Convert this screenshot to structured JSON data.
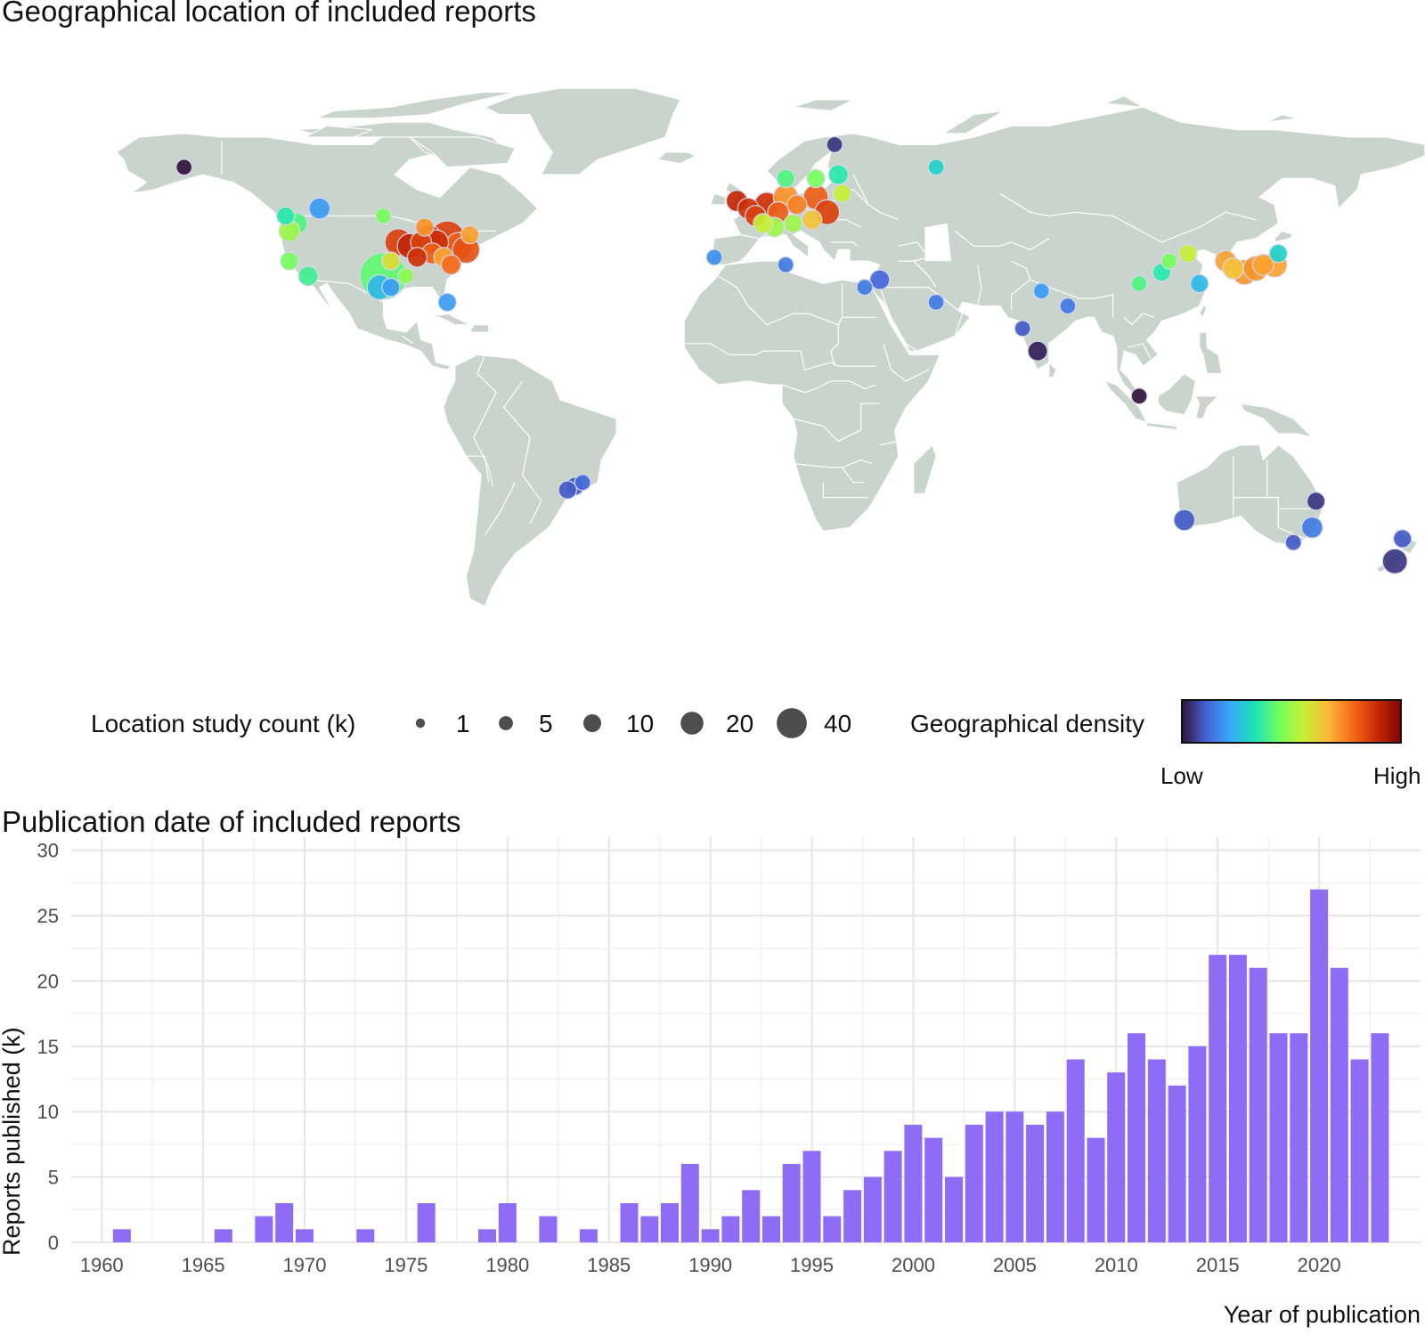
{
  "map": {
    "title": "Geographical location of included reports",
    "land_color": "#c8d4cc",
    "border_color": "#ffffff",
    "legend_size_title": "Location study count (k)",
    "legend_sizes": [
      {
        "value": 1,
        "label": "1"
      },
      {
        "value": 5,
        "label": "5"
      },
      {
        "value": 10,
        "label": "10"
      },
      {
        "value": 20,
        "label": "20"
      },
      {
        "value": 40,
        "label": "40"
      }
    ],
    "legend_color_title": "Geographical density",
    "legend_color_low": "Low",
    "legend_color_high": "High",
    "density_palette": [
      "#30123b",
      "#4662d7",
      "#36aaf9",
      "#1ae4b6",
      "#72fe5e",
      "#c8ef34",
      "#faba39",
      "#f66b19",
      "#ca2a04",
      "#7a0403"
    ],
    "points": [
      {
        "lon": -150,
        "lat": 62,
        "count": 2,
        "density": 0.0
      },
      {
        "lon": -114,
        "lat": 51,
        "count": 5,
        "density": 0.2
      },
      {
        "lon": -123,
        "lat": 49,
        "count": 3,
        "density": 0.35
      },
      {
        "lon": -120,
        "lat": 47,
        "count": 5,
        "density": 0.4
      },
      {
        "lon": -122,
        "lat": 45,
        "count": 5,
        "density": 0.5
      },
      {
        "lon": -122,
        "lat": 37,
        "count": 3,
        "density": 0.45
      },
      {
        "lon": -117,
        "lat": 33,
        "count": 4,
        "density": 0.38
      },
      {
        "lon": -97,
        "lat": 33,
        "count": 40,
        "density": 0.42
      },
      {
        "lon": -98,
        "lat": 30,
        "count": 8,
        "density": 0.25
      },
      {
        "lon": -95,
        "lat": 30,
        "count": 3,
        "density": 0.2
      },
      {
        "lon": -95,
        "lat": 37,
        "count": 3,
        "density": 0.6
      },
      {
        "lon": -97,
        "lat": 49,
        "count": 2,
        "density": 0.45
      },
      {
        "lon": -91,
        "lat": 33,
        "count": 2,
        "density": 0.48
      },
      {
        "lon": -93,
        "lat": 42,
        "count": 10,
        "density": 0.85
      },
      {
        "lon": -90,
        "lat": 41,
        "count": 8,
        "density": 0.9
      },
      {
        "lon": -87,
        "lat": 42,
        "count": 5,
        "density": 0.85
      },
      {
        "lon": -85,
        "lat": 43,
        "count": 10,
        "density": 0.9
      },
      {
        "lon": -83,
        "lat": 42,
        "count": 8,
        "density": 0.88
      },
      {
        "lon": -80,
        "lat": 43,
        "count": 20,
        "density": 0.85
      },
      {
        "lon": -77,
        "lat": 41,
        "count": 10,
        "density": 0.8
      },
      {
        "lon": -75,
        "lat": 40,
        "count": 10,
        "density": 0.82
      },
      {
        "lon": -84,
        "lat": 39,
        "count": 5,
        "density": 0.8
      },
      {
        "lon": -81,
        "lat": 38,
        "count": 4,
        "density": 0.7
      },
      {
        "lon": -79,
        "lat": 36,
        "count": 4,
        "density": 0.78
      },
      {
        "lon": -88,
        "lat": 38,
        "count": 4,
        "density": 0.88
      },
      {
        "lon": -86,
        "lat": 46,
        "count": 3,
        "density": 0.72
      },
      {
        "lon": -74,
        "lat": 44,
        "count": 3,
        "density": 0.7
      },
      {
        "lon": -80,
        "lat": 26,
        "count": 3,
        "density": 0.2
      },
      {
        "lon": -9,
        "lat": 38,
        "count": 2,
        "density": 0.18
      },
      {
        "lon": -3,
        "lat": 53,
        "count": 5,
        "density": 0.9
      },
      {
        "lon": 0,
        "lat": 51,
        "count": 5,
        "density": 0.88
      },
      {
        "lon": 2,
        "lat": 49,
        "count": 5,
        "density": 0.85
      },
      {
        "lon": 5,
        "lat": 52,
        "count": 8,
        "density": 0.88
      },
      {
        "lon": 8,
        "lat": 50,
        "count": 5,
        "density": 0.8
      },
      {
        "lon": 10,
        "lat": 54,
        "count": 8,
        "density": 0.72
      },
      {
        "lon": 13,
        "lat": 52,
        "count": 4,
        "density": 0.75
      },
      {
        "lon": 18,
        "lat": 54,
        "count": 8,
        "density": 0.8
      },
      {
        "lon": 21,
        "lat": 50,
        "count": 8,
        "density": 0.85
      },
      {
        "lon": 17,
        "lat": 48,
        "count": 4,
        "density": 0.65
      },
      {
        "lon": 12,
        "lat": 47,
        "count": 3,
        "density": 0.5
      },
      {
        "lon": 7,
        "lat": 46,
        "count": 4,
        "density": 0.5
      },
      {
        "lon": 4,
        "lat": 47,
        "count": 4,
        "density": 0.55
      },
      {
        "lon": 10,
        "lat": 59,
        "count": 3,
        "density": 0.4
      },
      {
        "lon": 18,
        "lat": 59,
        "count": 3,
        "density": 0.45
      },
      {
        "lon": 24,
        "lat": 60,
        "count": 4,
        "density": 0.35
      },
      {
        "lon": 25,
        "lat": 55,
        "count": 3,
        "density": 0.55
      },
      {
        "lon": 23,
        "lat": 68,
        "count": 2,
        "density": 0.05
      },
      {
        "lon": 10,
        "lat": 36,
        "count": 2,
        "density": 0.15
      },
      {
        "lon": 35,
        "lat": 32,
        "count": 4,
        "density": 0.12
      },
      {
        "lon": 31,
        "lat": 30,
        "count": 2,
        "density": 0.15
      },
      {
        "lon": 50,
        "lat": 26,
        "count": 2,
        "density": 0.15
      },
      {
        "lon": 50,
        "lat": 62,
        "count": 2,
        "density": 0.3
      },
      {
        "lon": 73,
        "lat": 19,
        "count": 2,
        "density": 0.1
      },
      {
        "lon": 77,
        "lat": 13,
        "count": 4,
        "density": 0.02
      },
      {
        "lon": 78,
        "lat": 29,
        "count": 2,
        "density": 0.2
      },
      {
        "lon": 85,
        "lat": 25,
        "count": 2,
        "density": 0.15
      },
      {
        "lon": 104,
        "lat": 1,
        "count": 2,
        "density": 0.0
      },
      {
        "lon": 104,
        "lat": 31,
        "count": 2,
        "density": 0.4
      },
      {
        "lon": 110,
        "lat": 34,
        "count": 3,
        "density": 0.35
      },
      {
        "lon": 112,
        "lat": 37,
        "count": 2,
        "density": 0.45
      },
      {
        "lon": 117,
        "lat": 39,
        "count": 3,
        "density": 0.55
      },
      {
        "lon": 120,
        "lat": 31,
        "count": 3,
        "density": 0.25
      },
      {
        "lon": 127,
        "lat": 37,
        "count": 5,
        "density": 0.7
      },
      {
        "lon": 129,
        "lat": 35,
        "count": 5,
        "density": 0.65
      },
      {
        "lon": 132,
        "lat": 34,
        "count": 8,
        "density": 0.72
      },
      {
        "lon": 135,
        "lat": 35,
        "count": 8,
        "density": 0.72
      },
      {
        "lon": 137,
        "lat": 36,
        "count": 5,
        "density": 0.7
      },
      {
        "lon": 140,
        "lat": 36,
        "count": 8,
        "density": 0.7
      },
      {
        "lon": 141,
        "lat": 39,
        "count": 3,
        "density": 0.3
      },
      {
        "lon": -46,
        "lat": -23,
        "count": 3,
        "density": 0.1
      },
      {
        "lon": -44,
        "lat": -22,
        "count": 2,
        "density": 0.12
      },
      {
        "lon": -48,
        "lat": -24,
        "count": 3,
        "density": 0.1
      },
      {
        "lon": 116,
        "lat": -32,
        "count": 5,
        "density": 0.1
      },
      {
        "lon": 151,
        "lat": -27,
        "count": 3,
        "density": 0.05
      },
      {
        "lon": 150,
        "lat": -34,
        "count": 5,
        "density": 0.15
      },
      {
        "lon": 145,
        "lat": -38,
        "count": 2,
        "density": 0.1
      },
      {
        "lon": 174,
        "lat": -37,
        "count": 3,
        "density": 0.1
      },
      {
        "lon": 172,
        "lat": -43,
        "count": 8,
        "density": 0.05
      }
    ]
  },
  "chart_data": {
    "type": "bar",
    "title": "Publication date of included reports",
    "xlabel": "Year of publication",
    "ylabel": "Reports published (k)",
    "color": "#8f6cf5",
    "x": [
      1961,
      1966,
      1968,
      1969,
      1970,
      1973,
      1976,
      1979,
      1980,
      1982,
      1984,
      1986,
      1987,
      1988,
      1989,
      1990,
      1991,
      1992,
      1993,
      1994,
      1995,
      1996,
      1997,
      1998,
      1999,
      2000,
      2001,
      2002,
      2003,
      2004,
      2005,
      2006,
      2007,
      2008,
      2009,
      2010,
      2011,
      2012,
      2013,
      2014,
      2015,
      2016,
      2017,
      2018,
      2019,
      2020,
      2021,
      2022,
      2023
    ],
    "values": [
      1,
      1,
      2,
      3,
      1,
      1,
      3,
      1,
      3,
      2,
      1,
      3,
      2,
      3,
      6,
      1,
      2,
      4,
      2,
      6,
      7,
      2,
      4,
      5,
      7,
      9,
      8,
      5,
      9,
      10,
      10,
      9,
      10,
      14,
      8,
      13,
      16,
      14,
      12,
      15,
      22,
      22,
      21,
      16,
      16,
      27,
      21,
      14,
      16
    ],
    "xlim": [
      1958.5,
      2025
    ],
    "ylim": [
      0,
      31
    ],
    "xticks": [
      "1960",
      "1965",
      "1970",
      "1975",
      "1980",
      "1985",
      "1990",
      "1995",
      "2000",
      "2005",
      "2010",
      "2015",
      "2020"
    ],
    "yticks": [
      "0",
      "5",
      "10",
      "15",
      "20",
      "25",
      "30"
    ],
    "grid": true
  }
}
